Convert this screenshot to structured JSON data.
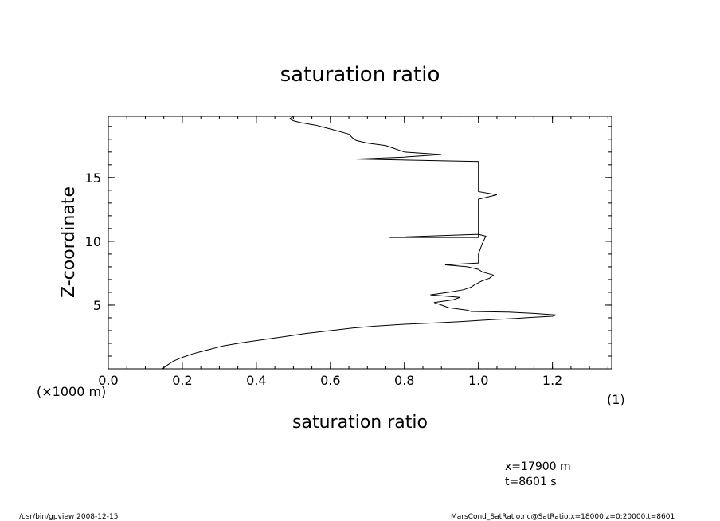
{
  "chart_data": {
    "type": "line",
    "title": "saturation ratio",
    "xlabel": "saturation ratio",
    "ylabel": "Z-coordinate",
    "x_unit": "(1)",
    "y_unit": "(×1000 m)",
    "xlim": [
      0.0,
      1.36
    ],
    "ylim": [
      0.0,
      19.8
    ],
    "x_ticks": [
      0.0,
      0.2,
      0.4,
      0.6,
      0.8,
      1.0,
      1.2
    ],
    "x_tick_labels": [
      "0.0",
      "0.2",
      "0.4",
      "0.6",
      "0.8",
      "1.0",
      "1.2"
    ],
    "y_ticks": [
      5,
      10,
      15
    ],
    "y_tick_labels": [
      "5",
      "10",
      "15"
    ],
    "grid": false,
    "series": [
      {
        "x": [
          0.146,
          0.16,
          0.175,
          0.2,
          0.23,
          0.27,
          0.31,
          0.36,
          0.42,
          0.48,
          0.54,
          0.6,
          0.66,
          0.72,
          0.8,
          0.88,
          0.95,
          1.0,
          1.05,
          1.1,
          1.15,
          1.2,
          1.21,
          1.15,
          1.08,
          0.98,
          0.97,
          0.92,
          0.9,
          0.88,
          0.93,
          0.95,
          0.87,
          0.92,
          0.96,
          0.98,
          0.99,
          1.0,
          1.01,
          1.03,
          1.04,
          1.01,
          1.0,
          0.97,
          0.93,
          0.91,
          1.0,
          1.0,
          1.01,
          1.02,
          1.0,
          0.76,
          1.0,
          1.0,
          1.0,
          1.05,
          1.0,
          1.0,
          1.0,
          1.0,
          1.0,
          1.0,
          0.67,
          0.8,
          0.9,
          0.8,
          0.77,
          0.75,
          0.7,
          0.67,
          0.66,
          0.65,
          0.6,
          0.56,
          0.52,
          0.5,
          0.49,
          0.5
        ],
        "y": [
          0.0,
          0.3,
          0.6,
          0.9,
          1.2,
          1.5,
          1.8,
          2.05,
          2.3,
          2.55,
          2.8,
          3.0,
          3.2,
          3.35,
          3.5,
          3.6,
          3.7,
          3.8,
          3.88,
          3.95,
          4.05,
          4.12,
          4.22,
          4.35,
          4.45,
          4.5,
          4.6,
          4.8,
          5.0,
          5.2,
          5.4,
          5.6,
          5.8,
          6.0,
          6.2,
          6.4,
          6.6,
          6.75,
          6.9,
          7.1,
          7.35,
          7.6,
          7.8,
          8.0,
          8.1,
          8.15,
          8.3,
          9.0,
          9.8,
          10.4,
          10.55,
          10.3,
          10.3,
          11.0,
          13.3,
          13.65,
          13.9,
          14.5,
          15.0,
          15.5,
          16.0,
          16.25,
          16.45,
          16.6,
          16.8,
          17.0,
          17.3,
          17.5,
          17.7,
          17.9,
          18.1,
          18.4,
          18.8,
          19.1,
          19.3,
          19.45,
          19.6,
          19.8
        ]
      }
    ]
  },
  "annotations": {
    "position_x": "x=17900  m",
    "time": "t=8601  s",
    "footer_left": "/usr/bin/gpview   2008-12-15",
    "footer_right": "MarsCond_SatRatio.nc@SatRatio,x=18000,z=0:20000,t=8601"
  }
}
